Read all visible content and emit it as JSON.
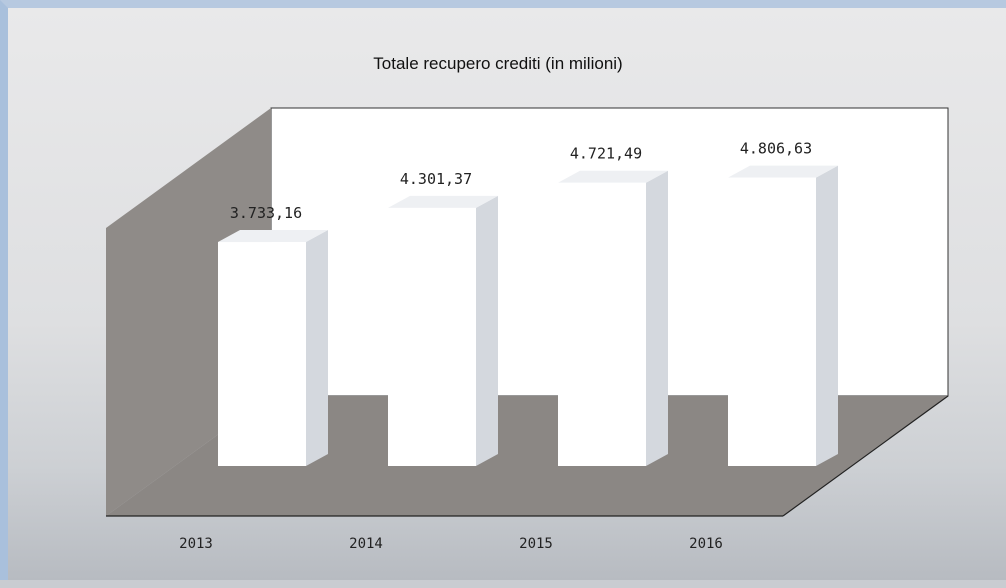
{
  "chart_data": {
    "type": "bar",
    "title": "Totale recupero crediti (in milioni)",
    "categories": [
      "2013",
      "2014",
      "2015",
      "2016"
    ],
    "values": [
      3733.16,
      4301.37,
      4721.49,
      4806.63
    ],
    "data_labels": [
      "3.733,16",
      "4.301,37",
      "4.721,49",
      "4.806,63"
    ],
    "style": "3d-column",
    "grid": false,
    "legend": "none",
    "colors": {
      "bar_front": "#ffffff",
      "bar_side": "#d4d8de",
      "bar_top": "#eef0f3",
      "back_wall": "#ffffff",
      "side_wall": "#8f8b88",
      "floor": "#8b8784",
      "background": "#dcdcde"
    }
  }
}
